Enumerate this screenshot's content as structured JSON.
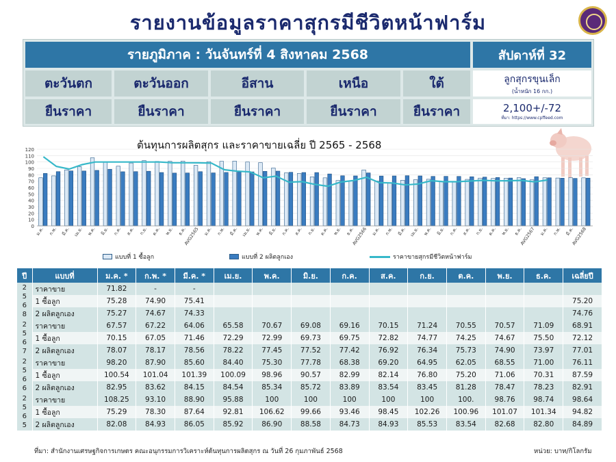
{
  "title": "รายงานข้อมูลราคาสุกรมีชีวิตหน้าฟาร์ม",
  "banner": {
    "date_text": "รายภูมิภาค : วันจันทร์ที่ 4 สิงหาคม 2568",
    "week_text": "สัปดาห์ที่ 32",
    "regions": [
      "ตะวันตก",
      "ตะวันออก",
      "อีสาน",
      "เหนือ",
      "ใต้"
    ],
    "statuses": [
      "ยืนราคา",
      "ยืนราคา",
      "ยืนราคา",
      "ยืนราคา",
      "ยืนราคา"
    ],
    "piglet_label": "ลูกสุกรขุนเล็ก",
    "piglet_weight": "(น้ำหนัก 16 กก.)",
    "piglet_price": "2,100+/-72",
    "piglet_source": "ที่มา: https://www.cpffeed.com"
  },
  "chart_data": {
    "type": "bar",
    "title": "ต้นทุนการผลิตสุกร และราคาขายเฉลี่ย ปี 2565 - 2568",
    "ylim": [
      0,
      120
    ],
    "yticks": [
      0,
      10,
      20,
      30,
      40,
      50,
      60,
      70,
      80,
      90,
      100,
      110,
      120
    ],
    "categories": [
      "ม.ค.",
      "ก.พ.",
      "มี.ค.",
      "เม.ย.",
      "พ.ค.",
      "มิ.ย.",
      "ก.ค.",
      "ส.ค.",
      "ก.ย.",
      "ต.ค.",
      "พ.ย.",
      "ธ.ค.",
      "AVG2565",
      "ม.ค.",
      "ก.พ.",
      "มี.ค.",
      "เม.ย.",
      "พ.ค.",
      "มิ.ย.",
      "ก.ค.",
      "ส.ค.",
      "ก.ย.",
      "ต.ค.",
      "พ.ย.",
      "ธ.ค.",
      "AVG2566",
      "ม.ค.",
      "ก.พ.",
      "มี.ค.",
      "เม.ย.",
      "พ.ค.",
      "มิ.ย.",
      "ก.ค.",
      "ส.ค.",
      "ก.ย.",
      "ต.ค.",
      "พ.ย.",
      "ธ.ค.",
      "AVG2567",
      "ม.ค.",
      "ก.พ.",
      "มี.ค.",
      "AVG2568"
    ],
    "series": [
      {
        "name": "แบบที่ 1 ซื้อลูก",
        "color": "#dce9f5",
        "values": [
          75.29,
          78.3,
          87.64,
          92.81,
          106.62,
          99.66,
          93.46,
          98.45,
          102.26,
          100.96,
          101.07,
          101.34,
          94.82,
          100.54,
          101.04,
          101.39,
          100.09,
          98.96,
          90.57,
          82.99,
          82.14,
          76.8,
          75.2,
          71.06,
          70.31,
          87.59,
          70.15,
          67.05,
          71.46,
          72.29,
          72.99,
          69.73,
          69.75,
          72.82,
          74.77,
          74.25,
          74.67,
          75.5,
          72.12,
          75.28,
          74.9,
          75.41,
          75.2
        ]
      },
      {
        "name": "แบบที่ 2 ผลิตลูกเอง",
        "color": "#3a7cc0",
        "values": [
          82.08,
          84.93,
          86.05,
          85.92,
          86.9,
          88.58,
          84.73,
          84.93,
          85.53,
          83.54,
          82.68,
          82.8,
          84.89,
          82.95,
          83.62,
          84.15,
          84.54,
          85.34,
          85.72,
          83.89,
          83.54,
          83.45,
          81.28,
          78.47,
          78.23,
          82.91,
          78.07,
          78.17,
          78.56,
          78.22,
          77.45,
          77.52,
          77.42,
          76.92,
          76.34,
          75.73,
          74.9,
          73.97,
          77.01,
          75.27,
          74.67,
          74.33,
          74.76
        ]
      },
      {
        "name": "ราคาขายสุกรมีชีวิตหน้าฟาร์ม",
        "color": "#36b8c9",
        "values": [
          108.25,
          93.1,
          88.9,
          95.88,
          100,
          100,
          100,
          100,
          100,
          100,
          98.76,
          98.74,
          98.64,
          98.2,
          87.9,
          85.6,
          84.4,
          75.3,
          77.78,
          68.38,
          69.2,
          64.95,
          62.05,
          68.55,
          71.0,
          76.11,
          67.57,
          67.22,
          64.06,
          65.58,
          70.67,
          69.08,
          69.16,
          70.15,
          71.24,
          70.55,
          70.57,
          71.09,
          68.91,
          71.82,
          null,
          null,
          null
        ]
      }
    ]
  },
  "table": {
    "headers": [
      "ปี",
      "แบบที่",
      "ม.ค. *",
      "ก.พ. *",
      "มี.ค. *",
      "เม.ย.",
      "พ.ค.",
      "มิ.ย.",
      "ก.ค.",
      "ส.ค.",
      "ก.ย.",
      "ต.ค.",
      "พ.ย.",
      "ธ.ค.",
      "เฉลี่ยปี"
    ],
    "groups": [
      {
        "year": [
          "2",
          "5",
          "6",
          "8"
        ],
        "rows": [
          {
            "label": "ราคาขาย",
            "cells": [
              "71.82",
              "-",
              "-",
              "",
              "",
              "",
              "",
              "",
              "",
              "",
              "",
              "",
              ""
            ]
          },
          {
            "label": "1 ซื้อลูก",
            "cells": [
              "75.28",
              "74.90",
              "75.41",
              "",
              "",
              "",
              "",
              "",
              "",
              "",
              "",
              "",
              "75.20"
            ]
          },
          {
            "label": "2 ผลิตลูกเอง",
            "cells": [
              "75.27",
              "74.67",
              "74.33",
              "",
              "",
              "",
              "",
              "",
              "",
              "",
              "",
              "",
              "74.76"
            ]
          }
        ]
      },
      {
        "year": [
          "2",
          "5",
          "6",
          "7"
        ],
        "rows": [
          {
            "label": "ราคาขาย",
            "cells": [
              "67.57",
              "67.22",
              "64.06",
              "65.58",
              "70.67",
              "69.08",
              "69.16",
              "70.15",
              "71.24",
              "70.55",
              "70.57",
              "71.09",
              "68.91"
            ]
          },
          {
            "label": "1 ซื้อลูก",
            "cells": [
              "70.15",
              "67.05",
              "71.46",
              "72.29",
              "72.99",
              "69.73",
              "69.75",
              "72.82",
              "74.77",
              "74.25",
              "74.67",
              "75.50",
              "72.12"
            ]
          },
          {
            "label": "2 ผลิตลูกเอง",
            "cells": [
              "78.07",
              "78.17",
              "78.56",
              "78.22",
              "77.45",
              "77.52",
              "77.42",
              "76.92",
              "76.34",
              "75.73",
              "74.90",
              "73.97",
              "77.01"
            ]
          }
        ]
      },
      {
        "year": [
          "2",
          "5",
          "6",
          "6"
        ],
        "rows": [
          {
            "label": "ราคาขาย",
            "cells": [
              "98.20",
              "87.90",
              "85.60",
              "84.40",
              "75.30",
              "77.78",
              "68.38",
              "69.20",
              "64.95",
              "62.05",
              "68.55",
              "71.00",
              "76.11"
            ]
          },
          {
            "label": "1 ซื้อลูก",
            "cells": [
              "100.54",
              "101.04",
              "101.39",
              "100.09",
              "98.96",
              "90.57",
              "82.99",
              "82.14",
              "76.80",
              "75.20",
              "71.06",
              "70.31",
              "87.59"
            ]
          },
          {
            "label": "2 ผลิตลูกเอง",
            "cells": [
              "82.95",
              "83.62",
              "84.15",
              "84.54",
              "85.34",
              "85.72",
              "83.89",
              "83.54",
              "83.45",
              "81.28",
              "78.47",
              "78.23",
              "82.91"
            ]
          }
        ]
      },
      {
        "year": [
          "2",
          "5",
          "6",
          "5"
        ],
        "rows": [
          {
            "label": "ราคาขาย",
            "cells": [
              "108.25",
              "93.10",
              "88.90",
              "95.88",
              "100",
              "100",
              "100",
              "100",
              "100",
              "100.",
              "98.76",
              "98.74",
              "98.64"
            ]
          },
          {
            "label": "1 ซื้อลูก",
            "cells": [
              "75.29",
              "78.30",
              "87.64",
              "92.81",
              "106.62",
              "99.66",
              "93.46",
              "98.45",
              "102.26",
              "100.96",
              "101.07",
              "101.34",
              "94.82"
            ]
          },
          {
            "label": "2 ผลิตลูกเอง",
            "cells": [
              "82.08",
              "84.93",
              "86.05",
              "85.92",
              "86.90",
              "88.58",
              "84.73",
              "84.93",
              "85.53",
              "83.54",
              "82.68",
              "82.80",
              "84.89"
            ]
          }
        ]
      }
    ]
  },
  "footer": {
    "source": "ที่มา: สำนักงานเศรษฐกิจการเกษตร คณะอนุกรรมการวิเคราะห์ต้นทุนการผลิตสุกร ณ วันที่ 26 กุมภาพันธ์ 2568",
    "unit": "หน่วย: บาท/กิโลกรัม"
  }
}
